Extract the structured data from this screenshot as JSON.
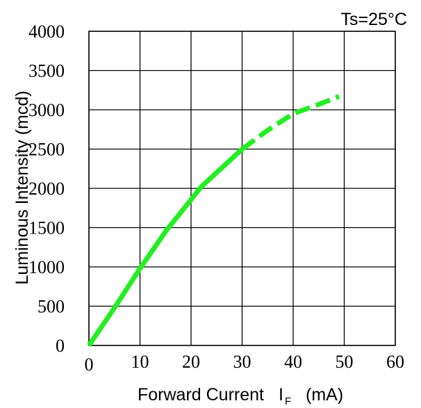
{
  "chart_data": {
    "type": "line",
    "title": "Ts=25°C",
    "xlabel": {
      "main": "Forward Current",
      "symbol": "I",
      "subscript": "F",
      "unit": "(mA)"
    },
    "ylabel": "Luminous  Intensity  (mcd)",
    "xlim": [
      0,
      60
    ],
    "ylim": [
      0,
      4000
    ],
    "x_ticks": [
      0,
      10,
      20,
      30,
      40,
      50,
      60
    ],
    "y_ticks": [
      0,
      500,
      1000,
      1500,
      2000,
      2500,
      3000,
      3500,
      4000
    ],
    "grid": true,
    "series": [
      {
        "style": "solid",
        "color": "#22ee22",
        "x": [
          0,
          5,
          10,
          15,
          22,
          30
        ],
        "y": [
          0,
          480,
          980,
          1450,
          2020,
          2500
        ]
      },
      {
        "style": "dashed",
        "color": "#22ee22",
        "x": [
          30,
          35,
          40,
          45,
          49
        ],
        "y": [
          2500,
          2740,
          2950,
          3070,
          3170
        ]
      }
    ]
  }
}
